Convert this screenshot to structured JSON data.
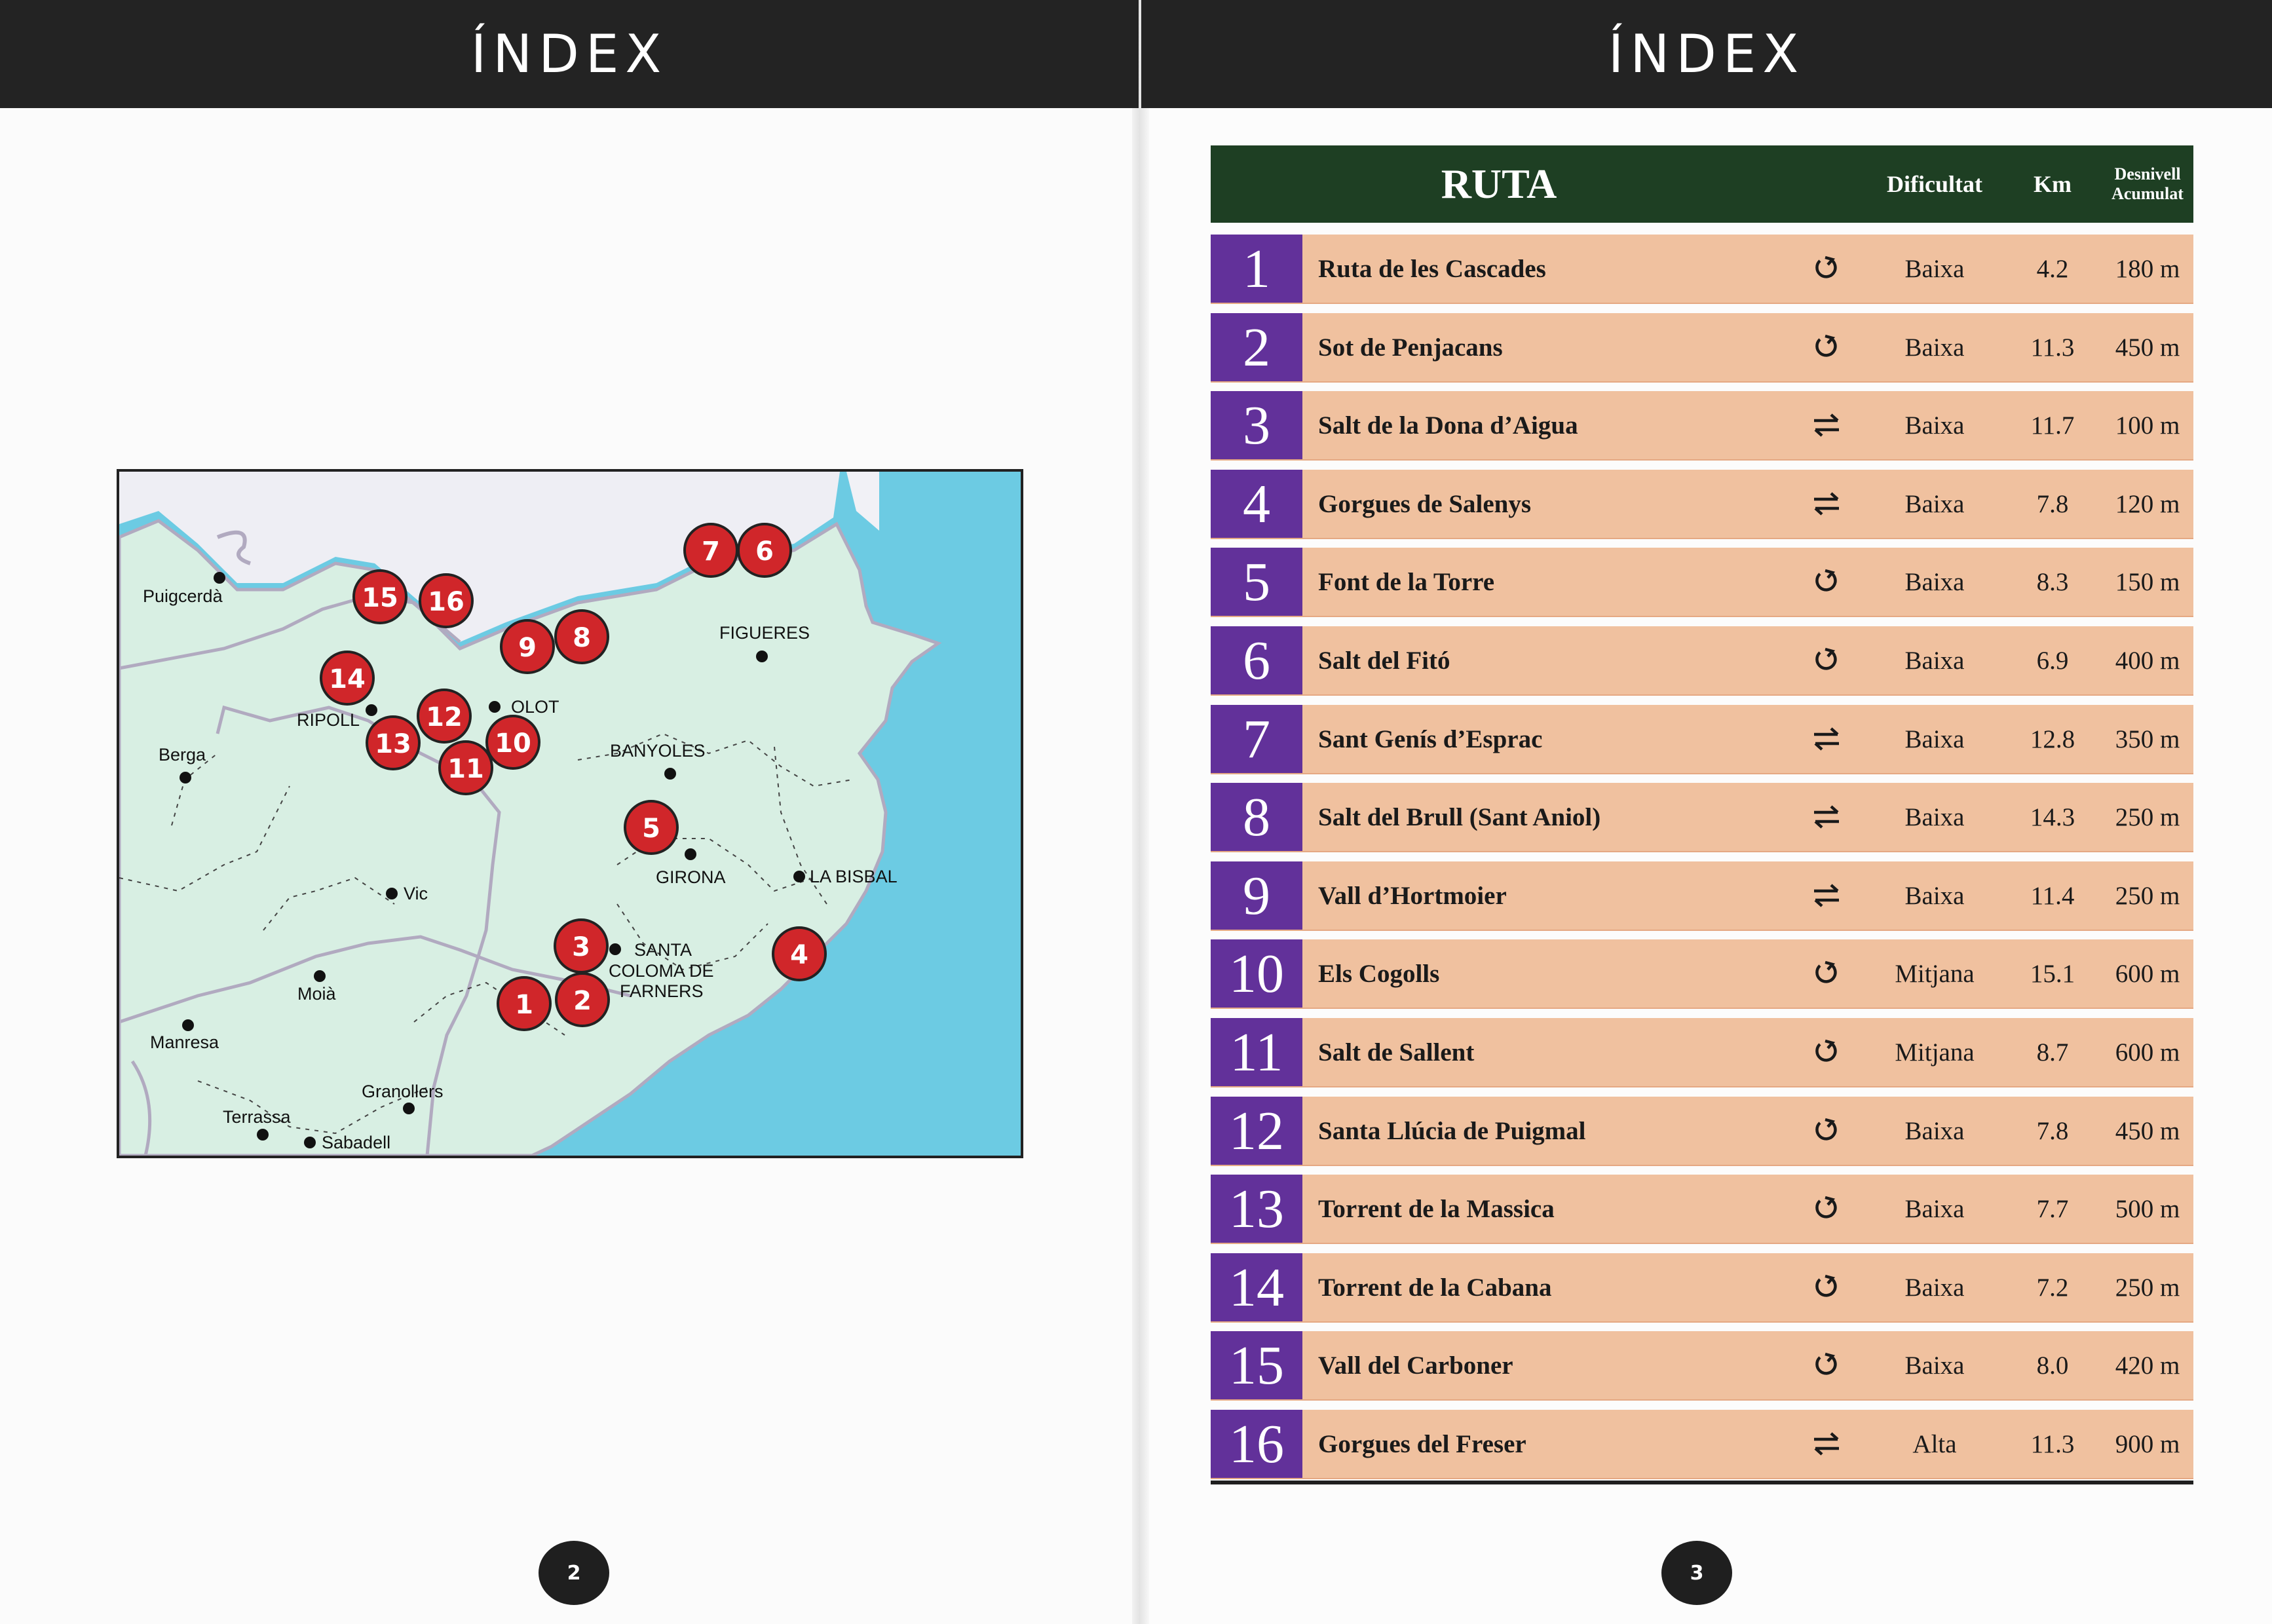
{
  "left_page": {
    "header": "ÍNDEX",
    "page_number": "2",
    "map": {
      "towns": [
        {
          "name": "Puigcerdà"
        },
        {
          "name": "FIGUERES"
        },
        {
          "name": "RIPOLL"
        },
        {
          "name": "OLOT"
        },
        {
          "name": "Berga"
        },
        {
          "name": "BANYOLES"
        },
        {
          "name": "GIRONA"
        },
        {
          "name": "LA BISBAL"
        },
        {
          "name": "Vic"
        },
        {
          "name": "SANTA"
        },
        {
          "name": "COLOMA DE"
        },
        {
          "name": "FARNERS"
        },
        {
          "name": "Moià"
        },
        {
          "name": "Manresa"
        },
        {
          "name": "Granollers"
        },
        {
          "name": "Terrassa"
        },
        {
          "name": "Sabadell"
        }
      ],
      "markers": [
        "1",
        "2",
        "3",
        "4",
        "5",
        "6",
        "7",
        "8",
        "9",
        "10",
        "11",
        "12",
        "13",
        "14",
        "15",
        "16"
      ],
      "colors": {
        "sea": "#6ccbe3",
        "land": "#d8efe3",
        "border": "#b1aac0",
        "marker": "#d0262a"
      }
    }
  },
  "right_page": {
    "header": "ÍNDEX",
    "page_number": "3",
    "table": {
      "columns": {
        "ruta": "RUTA",
        "dificultat": "Dificultat",
        "km": "Km",
        "desnivell_1": "Desnivell",
        "desnivell_2": "Acumulat"
      },
      "rows": [
        {
          "num": "1",
          "name": "Ruta de les Cascades",
          "type": "loop-icon",
          "difficulty": "Baixa",
          "km": "4.2",
          "elevation": "180 m"
        },
        {
          "num": "2",
          "name": "Sot de Penjacans",
          "type": "loop-icon",
          "difficulty": "Baixa",
          "km": "11.3",
          "elevation": "450 m"
        },
        {
          "num": "3",
          "name": "Salt de la Dona d’Aigua",
          "type": "return-icon",
          "difficulty": "Baixa",
          "km": "11.7",
          "elevation": "100 m"
        },
        {
          "num": "4",
          "name": "Gorgues de Salenys",
          "type": "return-icon",
          "difficulty": "Baixa",
          "km": "7.8",
          "elevation": "120 m"
        },
        {
          "num": "5",
          "name": "Font de la Torre",
          "type": "loop-icon",
          "difficulty": "Baixa",
          "km": "8.3",
          "elevation": "150 m"
        },
        {
          "num": "6",
          "name": "Salt del Fitó",
          "type": "loop-icon",
          "difficulty": "Baixa",
          "km": "6.9",
          "elevation": "400 m"
        },
        {
          "num": "7",
          "name": "Sant Genís d’Esprac",
          "type": "return-icon",
          "difficulty": "Baixa",
          "km": "12.8",
          "elevation": "350 m"
        },
        {
          "num": "8",
          "name": "Salt del Brull (Sant Aniol)",
          "type": "return-icon",
          "difficulty": "Baixa",
          "km": "14.3",
          "elevation": "250 m"
        },
        {
          "num": "9",
          "name": "Vall d’Hortmoier",
          "type": "return-icon",
          "difficulty": "Baixa",
          "km": "11.4",
          "elevation": "250 m"
        },
        {
          "num": "10",
          "name": "Els Cogolls",
          "type": "loop-icon",
          "difficulty": "Mitjana",
          "km": "15.1",
          "elevation": "600 m"
        },
        {
          "num": "11",
          "name": "Salt de Sallent",
          "type": "loop-icon",
          "difficulty": "Mitjana",
          "km": "8.7",
          "elevation": "600 m"
        },
        {
          "num": "12",
          "name": "Santa Llúcia de Puigmal",
          "type": "loop-icon",
          "difficulty": "Baixa",
          "km": "7.8",
          "elevation": "450 m"
        },
        {
          "num": "13",
          "name": "Torrent de la Massica",
          "type": "loop-icon",
          "difficulty": "Baixa",
          "km": "7.7",
          "elevation": "500 m"
        },
        {
          "num": "14",
          "name": "Torrent de la Cabana",
          "type": "loop-icon",
          "difficulty": "Baixa",
          "km": "7.2",
          "elevation": "250 m"
        },
        {
          "num": "15",
          "name": "Vall del Carboner",
          "type": "loop-icon",
          "difficulty": "Baixa",
          "km": "8.0",
          "elevation": "420 m"
        },
        {
          "num": "16",
          "name": "Gorgues del Freser",
          "type": "return-icon",
          "difficulty": "Alta",
          "km": "11.3",
          "elevation": "900 m"
        }
      ],
      "colors": {
        "header": "#1e3f23",
        "number_cell": "#62319a",
        "row": "#f0c19f"
      }
    }
  }
}
